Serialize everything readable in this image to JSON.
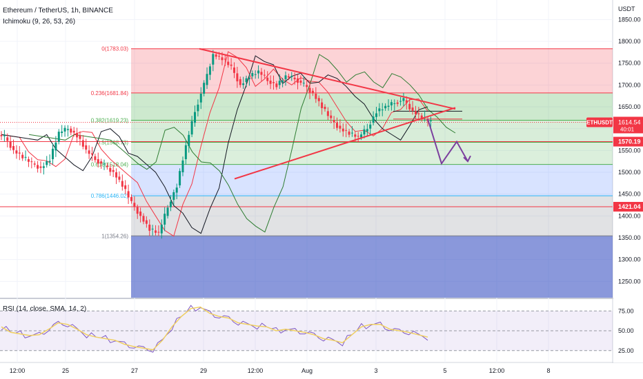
{
  "header": {
    "symbol_line": "Ethereum / TetherUS, 1h, BINANCE",
    "indicator": "Ichimoku (9, 26, 53, 26)",
    "rsi_label": "RSI (14, close, SMA, 14, 2)"
  },
  "price_axis": {
    "currency": "USDT",
    "ticks": [
      "1850.00",
      "1800.00",
      "1750.00",
      "1700.00",
      "1650.00",
      "1600.00",
      "1550.00",
      "1500.00",
      "1450.00",
      "1400.00",
      "1350.00",
      "1300.00",
      "1250.00"
    ],
    "ethusdt_tag": {
      "label": "ETHUSDT",
      "price": "1614.54",
      "countdown": "40:01",
      "color": "#f23645"
    },
    "price_tags": [
      {
        "label": "1570.19",
        "color": "#f23645",
        "value": 1570.19
      },
      {
        "label": "1421.04",
        "color": "#f23645",
        "value": 1421.04
      }
    ]
  },
  "rsi_axis": {
    "ticks": [
      "75.00",
      "50.00",
      "25.00"
    ]
  },
  "time_axis": {
    "ticks": [
      "12:00",
      "25",
      "27",
      "29",
      "12:00",
      "Aug",
      "3",
      "5",
      "12:00",
      "8"
    ]
  },
  "colors": {
    "bull": "#089981",
    "bear": "#f23645",
    "trendline": "#f23645",
    "projection": "#7b3f9e",
    "rsi": "#7e57c2",
    "rsi_ma": "#f0d060",
    "price_line": "#f23645"
  },
  "chart_data": {
    "type": "candlestick",
    "title": "Ethereum / TetherUS, 1h, BINANCE",
    "y_range": [
      1200,
      1870
    ],
    "fib_levels": [
      {
        "label": "0(1783.03)",
        "ratio": 0,
        "price": 1783.03,
        "color": "#f23645"
      },
      {
        "label": "0.236(1681.84)",
        "ratio": 0.236,
        "price": 1681.84,
        "color": "#f23645"
      },
      {
        "label": "0.382(1619.23)",
        "ratio": 0.382,
        "price": 1619.23,
        "color": "#4caf50"
      },
      {
        "label": "0.5(1568.73)",
        "ratio": 0.5,
        "price": 1568.73,
        "color": "#4caf50"
      },
      {
        "label": "0.618(1518.04)",
        "ratio": 0.618,
        "price": 1518.04,
        "color": "#4caf50"
      },
      {
        "label": "0.786(1446.02)",
        "ratio": 0.786,
        "price": 1446.02,
        "color": "#29b6f6"
      },
      {
        "label": "1(1354.26)",
        "ratio": 1,
        "price": 1354.26,
        "color": "#787b86"
      }
    ],
    "horizontal_lines": [
      1570.19,
      1421.04
    ],
    "triangle": {
      "upper": [
        {
          "t": "Jul 28 22:00",
          "p": 1782
        },
        {
          "t": "Aug 4 04:00",
          "p": 1645
        }
      ],
      "lower": [
        {
          "t": "Jul 29 18:00",
          "p": 1485
        },
        {
          "t": "Aug 4 04:00",
          "p": 1648
        }
      ]
    },
    "projection_path": [
      1622,
      1520,
      1570,
      1525
    ],
    "price_series": [
      1580,
      1550,
      1535,
      1520,
      1510,
      1530,
      1590,
      1600,
      1585,
      1550,
      1530,
      1515,
      1500,
      1470,
      1430,
      1400,
      1370,
      1360,
      1420,
      1470,
      1560,
      1640,
      1700,
      1770,
      1760,
      1740,
      1700,
      1720,
      1730,
      1710,
      1700,
      1720,
      1715,
      1700,
      1680,
      1650,
      1620,
      1600,
      1590,
      1580,
      1600,
      1640,
      1650,
      1660,
      1665,
      1640,
      1625,
      1614.54
    ],
    "rsi": {
      "range": [
        10,
        90
      ],
      "values": [
        55,
        48,
        46,
        44,
        45,
        52,
        60,
        58,
        52,
        45,
        42,
        40,
        38,
        33,
        30,
        28,
        26,
        38,
        55,
        68,
        78,
        80,
        72,
        68,
        66,
        60,
        58,
        56,
        55,
        50,
        52,
        50,
        48,
        45,
        40,
        38,
        35,
        45,
        55,
        58,
        58,
        52,
        50,
        48,
        45,
        42
      ]
    }
  }
}
